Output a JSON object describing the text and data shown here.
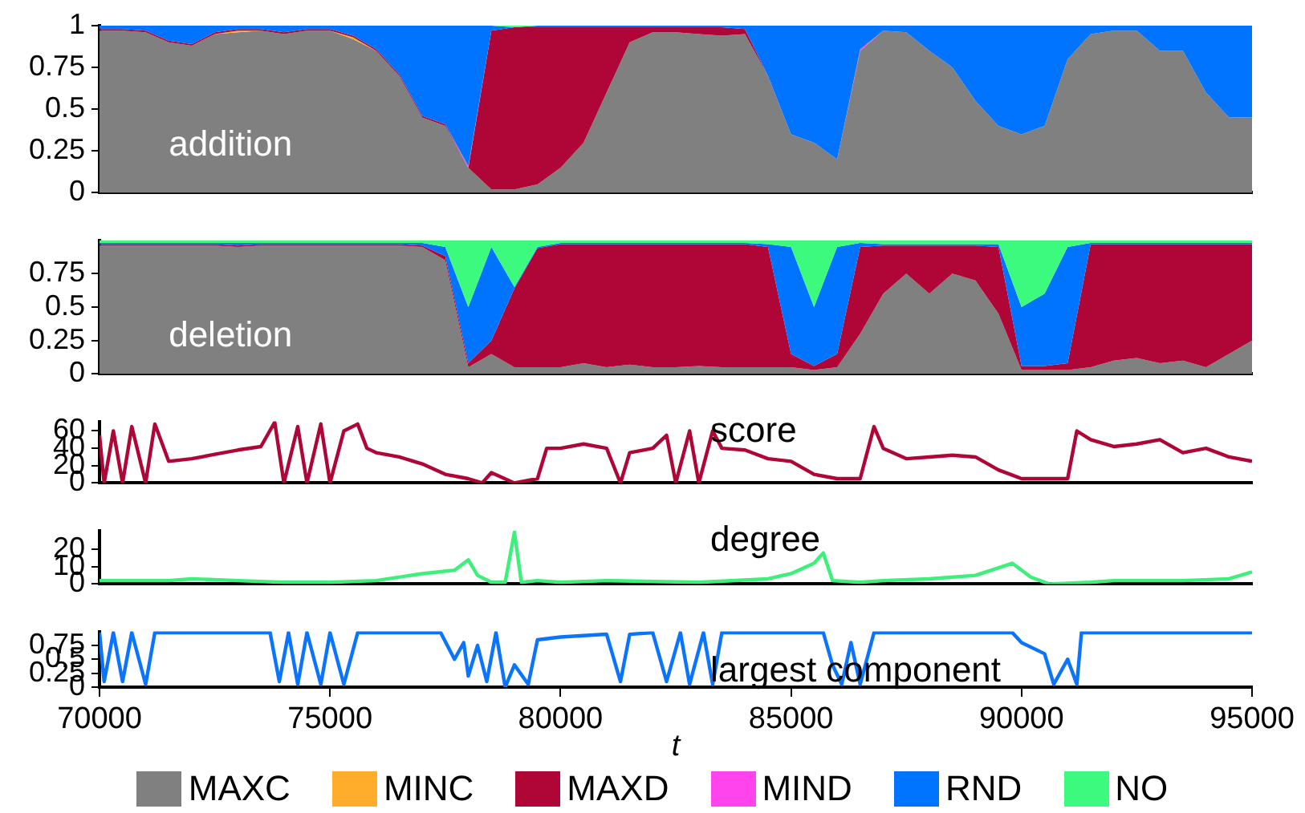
{
  "chart_data": [
    {
      "type": "area",
      "stacked": true,
      "annotations": [
        "addition"
      ],
      "legend": "bottom",
      "tick_labels": "y",
      "xlim": [
        70000,
        95000
      ],
      "xticks": [
        70000,
        75000,
        80000,
        85000,
        90000,
        95000
      ],
      "ylim": [
        0,
        1
      ],
      "yticks": [
        0,
        0.25,
        0.5,
        0.75,
        1
      ],
      "x": [
        70000,
        70500,
        71000,
        71500,
        72000,
        72500,
        73000,
        73500,
        74000,
        74500,
        75000,
        75500,
        76000,
        76500,
        77000,
        77500,
        78000,
        78500,
        79000,
        79500,
        80000,
        80500,
        81000,
        81500,
        82000,
        82500,
        83000,
        83500,
        84000,
        84500,
        85000,
        85500,
        86000,
        86500,
        87000,
        87500,
        88000,
        88500,
        89000,
        89500,
        90000,
        90500,
        91000,
        91500,
        92000,
        92500,
        93000,
        93500,
        94000,
        94500,
        95000
      ],
      "series": [
        {
          "name": "MAXC",
          "color": "#808080",
          "values": [
            0.97,
            0.97,
            0.96,
            0.9,
            0.88,
            0.95,
            0.96,
            0.97,
            0.95,
            0.97,
            0.97,
            0.92,
            0.85,
            0.7,
            0.45,
            0.4,
            0.15,
            0.02,
            0.02,
            0.05,
            0.15,
            0.3,
            0.6,
            0.9,
            0.96,
            0.96,
            0.95,
            0.94,
            0.95,
            0.7,
            0.35,
            0.3,
            0.2,
            0.85,
            0.97,
            0.96,
            0.85,
            0.75,
            0.55,
            0.4,
            0.35,
            0.4,
            0.8,
            0.95,
            0.97,
            0.97,
            0.85,
            0.85,
            0.6,
            0.45,
            0.45
          ]
        },
        {
          "name": "MINC",
          "color": "#ffad2a",
          "values": [
            0,
            0,
            0,
            0,
            0,
            0,
            0.01,
            0,
            0,
            0,
            0,
            0.01,
            0,
            0,
            0,
            0,
            0,
            0,
            0,
            0,
            0,
            0,
            0,
            0,
            0,
            0,
            0,
            0,
            0,
            0,
            0,
            0,
            0,
            0,
            0,
            0,
            0,
            0,
            0,
            0,
            0,
            0,
            0,
            0,
            0,
            0,
            0,
            0,
            0,
            0,
            0
          ]
        },
        {
          "name": "MAXD",
          "color": "#b00637",
          "values": [
            0.01,
            0.01,
            0.01,
            0.01,
            0.01,
            0.01,
            0.01,
            0.01,
            0.01,
            0.01,
            0.01,
            0.01,
            0.01,
            0.01,
            0.01,
            0.01,
            0,
            0.95,
            0.97,
            0.94,
            0.84,
            0.69,
            0.39,
            0.09,
            0.03,
            0.03,
            0.04,
            0.05,
            0.03,
            0,
            0,
            0,
            0,
            0,
            0,
            0,
            0,
            0,
            0,
            0,
            0,
            0,
            0,
            0,
            0,
            0,
            0,
            0,
            0,
            0,
            0
          ]
        },
        {
          "name": "MIND",
          "color": "#ff44ee",
          "values": [
            0,
            0,
            0,
            0,
            0,
            0,
            0,
            0,
            0,
            0,
            0,
            0,
            0,
            0,
            0,
            0,
            0.01,
            0,
            0,
            0,
            0,
            0,
            0,
            0,
            0,
            0,
            0,
            0,
            0,
            0,
            0,
            0,
            0,
            0.01,
            0,
            0,
            0,
            0,
            0,
            0,
            0,
            0,
            0,
            0,
            0,
            0,
            0,
            0,
            0,
            0,
            0
          ]
        },
        {
          "name": "RND",
          "color": "#0073ff",
          "values": [
            0.02,
            0.02,
            0.03,
            0.09,
            0.11,
            0.04,
            0.02,
            0.02,
            0.04,
            0.02,
            0.02,
            0.06,
            0.14,
            0.29,
            0.54,
            0.59,
            0.84,
            0.03,
            0,
            0.01,
            0.01,
            0.01,
            0.01,
            0.01,
            0.01,
            0.01,
            0.01,
            0.01,
            0.02,
            0.3,
            0.65,
            0.7,
            0.8,
            0.14,
            0.03,
            0.04,
            0.15,
            0.25,
            0.45,
            0.6,
            0.65,
            0.6,
            0.2,
            0.05,
            0.03,
            0.03,
            0.15,
            0.15,
            0.4,
            0.55,
            0.55
          ]
        },
        {
          "name": "NO",
          "color": "#3cfa7e",
          "values": [
            0,
            0,
            0,
            0,
            0,
            0,
            0,
            0,
            0,
            0,
            0,
            0,
            0,
            0,
            0,
            0,
            0,
            0,
            0.01,
            0,
            0,
            0,
            0,
            0,
            0,
            0,
            0,
            0,
            0,
            0,
            0,
            0,
            0,
            0,
            0,
            0,
            0,
            0,
            0,
            0,
            0,
            0,
            0,
            0,
            0,
            0,
            0,
            0,
            0,
            0,
            0
          ]
        }
      ]
    },
    {
      "type": "area",
      "stacked": true,
      "annotations": [
        "deletion"
      ],
      "tick_labels": "y",
      "xlim": [
        70000,
        95000
      ],
      "xticks": [
        70000,
        75000,
        80000,
        85000,
        90000,
        95000
      ],
      "ylim": [
        0,
        1
      ],
      "yticks": [
        0,
        0.25,
        0.5,
        0.75
      ],
      "x": [
        70000,
        70500,
        71000,
        71500,
        72000,
        72500,
        73000,
        73500,
        74000,
        74500,
        75000,
        75500,
        76000,
        76500,
        77000,
        77500,
        78000,
        78500,
        79000,
        79500,
        80000,
        80500,
        81000,
        81500,
        82000,
        82500,
        83000,
        83500,
        84000,
        84500,
        85000,
        85500,
        86000,
        86500,
        87000,
        87500,
        88000,
        88500,
        89000,
        89500,
        90000,
        90500,
        91000,
        91500,
        92000,
        92500,
        93000,
        93500,
        94000,
        94500,
        95000
      ],
      "series": [
        {
          "color": "#808080",
          "values": [
            0.96,
            0.96,
            0.96,
            0.96,
            0.96,
            0.96,
            0.95,
            0.96,
            0.96,
            0.96,
            0.96,
            0.96,
            0.96,
            0.96,
            0.95,
            0.85,
            0.05,
            0.15,
            0.05,
            0.05,
            0.05,
            0.08,
            0.05,
            0.07,
            0.05,
            0.05,
            0.06,
            0.05,
            0.05,
            0.05,
            0.05,
            0.03,
            0.05,
            0.3,
            0.6,
            0.75,
            0.6,
            0.75,
            0.7,
            0.45,
            0.03,
            0.03,
            0.03,
            0.05,
            0.1,
            0.12,
            0.08,
            0.1,
            0.05,
            0.15,
            0.25
          ]
        },
        {
          "color": "#b00637",
          "values": [
            0.01,
            0.01,
            0.01,
            0.01,
            0.01,
            0.01,
            0.01,
            0.01,
            0.01,
            0.01,
            0.01,
            0.01,
            0.01,
            0.01,
            0.01,
            0.03,
            0.03,
            0.1,
            0.59,
            0.89,
            0.92,
            0.89,
            0.92,
            0.9,
            0.92,
            0.92,
            0.91,
            0.92,
            0.92,
            0.9,
            0.1,
            0.03,
            0.1,
            0.65,
            0.36,
            0.21,
            0.36,
            0.21,
            0.26,
            0.5,
            0.03,
            0.03,
            0.05,
            0.92,
            0.87,
            0.85,
            0.89,
            0.87,
            0.92,
            0.82,
            0.72
          ]
        },
        {
          "color": "#0073ff",
          "values": [
            0.01,
            0.01,
            0.01,
            0.01,
            0.01,
            0.01,
            0.02,
            0.01,
            0.01,
            0.01,
            0.01,
            0.01,
            0.01,
            0.01,
            0.02,
            0.07,
            0.42,
            0.7,
            0.01,
            0.01,
            0.01,
            0.01,
            0.01,
            0.01,
            0.01,
            0.01,
            0.01,
            0.01,
            0.01,
            0.02,
            0.8,
            0.44,
            0.8,
            0.03,
            0.01,
            0.01,
            0.01,
            0.01,
            0.01,
            0.02,
            0.44,
            0.54,
            0.87,
            0.01,
            0.01,
            0.01,
            0.01,
            0.01,
            0.01,
            0.01,
            0.01
          ]
        },
        {
          "color": "#3cfa7e",
          "values": [
            0.02,
            0.02,
            0.02,
            0.02,
            0.02,
            0.02,
            0.02,
            0.02,
            0.02,
            0.02,
            0.02,
            0.02,
            0.02,
            0.02,
            0.02,
            0.05,
            0.5,
            0.05,
            0.35,
            0.05,
            0.02,
            0.02,
            0.02,
            0.02,
            0.02,
            0.02,
            0.02,
            0.02,
            0.02,
            0.03,
            0.05,
            0.5,
            0.05,
            0.02,
            0.03,
            0.03,
            0.03,
            0.03,
            0.03,
            0.03,
            0.5,
            0.4,
            0.05,
            0.02,
            0.02,
            0.02,
            0.02,
            0.02,
            0.02,
            0.02,
            0.02
          ]
        }
      ]
    },
    {
      "type": "line",
      "annotations": [
        "score"
      ],
      "tick_labels": "y",
      "xlim": [
        70000,
        95000
      ],
      "xticks": [
        70000,
        75000,
        80000,
        85000,
        90000,
        95000
      ],
      "ylim": [
        0,
        71
      ],
      "yticks": [
        0,
        20,
        40,
        60
      ],
      "series": [
        {
          "color": "#b00637",
          "x": [
            70000,
            70100,
            70300,
            70500,
            70700,
            71000,
            71200,
            71500,
            72000,
            72500,
            73000,
            73500,
            73800,
            74000,
            74300,
            74500,
            74800,
            75000,
            75300,
            75600,
            75800,
            76000,
            76500,
            77000,
            77500,
            78000,
            78300,
            78500,
            79000,
            79500,
            79700,
            80000,
            80500,
            81000,
            81300,
            81500,
            82000,
            82300,
            82500,
            82800,
            83000,
            83300,
            83500,
            84000,
            84500,
            85000,
            85500,
            86000,
            86500,
            86800,
            87000,
            87500,
            88000,
            88500,
            89000,
            89500,
            90000,
            90500,
            91000,
            91200,
            91500,
            92000,
            92500,
            93000,
            93500,
            94000,
            94500,
            95000
          ],
          "values": [
            55,
            0,
            60,
            0,
            65,
            0,
            68,
            25,
            28,
            33,
            38,
            42,
            70,
            0,
            65,
            0,
            68,
            0,
            60,
            68,
            40,
            35,
            30,
            22,
            10,
            5,
            0,
            12,
            0,
            5,
            40,
            40,
            45,
            40,
            0,
            35,
            40,
            55,
            0,
            60,
            0,
            60,
            40,
            38,
            28,
            25,
            10,
            5,
            5,
            65,
            40,
            28,
            30,
            32,
            30,
            15,
            5,
            5,
            5,
            60,
            50,
            42,
            45,
            50,
            35,
            40,
            30,
            25
          ]
        }
      ]
    },
    {
      "type": "line",
      "annotations": [
        "degree"
      ],
      "tick_labels": "y",
      "xlim": [
        70000,
        95000
      ],
      "xticks": [
        70000,
        75000,
        80000,
        85000,
        90000,
        95000
      ],
      "ylim": [
        0,
        31
      ],
      "yticks": [
        0,
        10,
        20
      ],
      "series": [
        {
          "color": "#3cf07a",
          "x": [
            70000,
            71500,
            72000,
            73000,
            74000,
            75000,
            76000,
            77000,
            77700,
            78000,
            78200,
            78500,
            78800,
            79000,
            79150,
            79500,
            80000,
            81000,
            83000,
            84500,
            85000,
            85500,
            85700,
            85900,
            86500,
            87000,
            88000,
            89000,
            89800,
            90200,
            90600,
            91500,
            92000,
            93500,
            94500,
            95000
          ],
          "values": [
            2,
            2,
            3,
            2,
            1,
            1,
            2,
            6,
            8,
            14,
            5,
            1,
            1,
            30,
            1,
            2,
            1,
            2,
            1,
            3,
            6,
            12,
            18,
            2,
            1,
            2,
            3,
            5,
            12,
            4,
            0,
            1,
            2,
            2,
            3,
            7
          ]
        }
      ]
    },
    {
      "type": "line",
      "annotations": [
        "largest component"
      ],
      "xlabel": "t",
      "xlim": [
        70000,
        95000
      ],
      "xticks": [
        70000,
        75000,
        80000,
        85000,
        90000,
        95000
      ],
      "ylim": [
        0,
        1
      ],
      "yticks": [
        0,
        0.25,
        0.5,
        0.75
      ],
      "series": [
        {
          "color": "#0a74ff",
          "x": [
            70000,
            70100,
            70300,
            70500,
            70700,
            71000,
            71200,
            73700,
            73900,
            74100,
            74300,
            74500,
            74800,
            75000,
            75300,
            75600,
            77400,
            77700,
            77900,
            78000,
            78200,
            78400,
            78600,
            78800,
            79000,
            79300,
            79500,
            80000,
            81000,
            81300,
            81500,
            82000,
            82300,
            82600,
            82800,
            83100,
            83300,
            83500,
            85700,
            85900,
            86100,
            86300,
            86500,
            86800,
            89800,
            90000,
            90500,
            90700,
            91000,
            91200,
            91300,
            95000
          ],
          "values": [
            0.98,
            0.1,
            0.98,
            0.1,
            0.98,
            0.05,
            0.98,
            0.98,
            0.1,
            0.98,
            0.05,
            0.98,
            0.05,
            0.98,
            0.05,
            0.98,
            0.98,
            0.5,
            0.8,
            0.2,
            0.75,
            0.1,
            0.98,
            0,
            0.4,
            0.05,
            0.85,
            0.9,
            0.95,
            0.1,
            0.95,
            0.98,
            0.1,
            0.98,
            0.05,
            0.98,
            0.05,
            0.98,
            0.98,
            0.4,
            0.05,
            0.8,
            0.05,
            0.98,
            0.98,
            0.8,
            0.6,
            0.05,
            0.5,
            0.05,
            0.98,
            0.98
          ]
        }
      ]
    }
  ]
}
